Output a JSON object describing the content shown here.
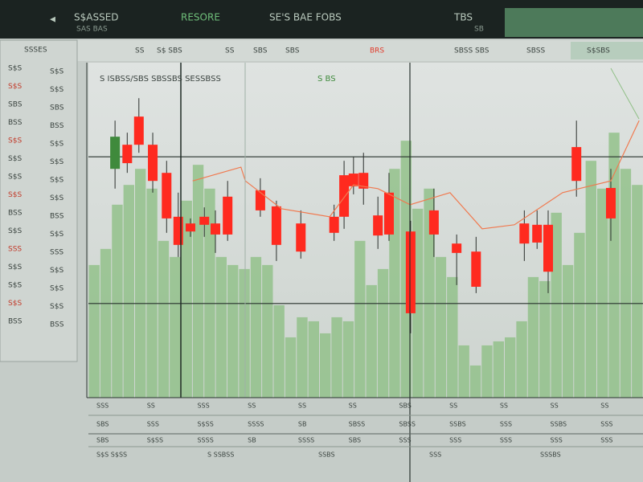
{
  "toolbar": {
    "tabs": [
      "S$ASSED",
      "RESORE",
      "SE'S BAE FOBS",
      "TBS"
    ],
    "subtabs": [
      "SAS BAS",
      "SB"
    ]
  },
  "secondbar": [
    "SS",
    "S$ SBS",
    "SS",
    "SBS",
    "SBS",
    "BRS",
    "SBSS SBS",
    "SBSS",
    "S$SBS"
  ],
  "watchlist": {
    "title": "SSSES",
    "rows": [
      "S$S",
      "S$S",
      "SBS",
      "BSS",
      "S$S",
      "S$S",
      "S$S",
      "S$S",
      "BSS",
      "S$S",
      "SSS",
      "S$S",
      "S$S",
      "S$S",
      "BSS"
    ]
  },
  "chart_data": {
    "type": "candlestick",
    "title": "S ISBSS/SBS SBSSBS SESSBSS",
    "subtitle": "S BS",
    "xlim": [
      0,
      100
    ],
    "ylim": [
      0,
      100
    ],
    "up_color": "#3f8a3c",
    "down_color": "#ff2a1f",
    "volume_color": "#8fbf86",
    "ma_color": "#f07a50",
    "levels": [
      71.9,
      28.1
    ],
    "candles": {
      "x": [
        4.8,
        7.0,
        9.1,
        11.6,
        14.1,
        16.2,
        18.4,
        20.9,
        22.9,
        25.1,
        31.0,
        33.9,
        38.3,
        44.3,
        46.1,
        47.8,
        49.6,
        52.2,
        54.2,
        58.1,
        62.3,
        66.4,
        69.9,
        78.6,
        80.9,
        82.9,
        88.0,
        94.2
      ],
      "open": [
        68.3,
        75.5,
        83.9,
        75.5,
        67.1,
        54.0,
        52.0,
        54.0,
        52.0,
        60.0,
        61.9,
        57.1,
        52.0,
        54.0,
        66.4,
        66.9,
        67.1,
        54.4,
        61.2,
        49.6,
        55.9,
        46.0,
        43.6,
        52.0,
        51.6,
        51.6,
        74.8,
        62.6
      ],
      "high": [
        82.7,
        79.1,
        89.4,
        79.1,
        70.7,
        61.2,
        53.5,
        56.8,
        55.9,
        64.7,
        65.5,
        58.8,
        55.9,
        57.6,
        70.7,
        71.9,
        73.1,
        60.0,
        67.1,
        52.8,
        62.4,
        48.7,
        48.0,
        55.9,
        55.9,
        55.9,
        82.7,
        68.3
      ],
      "low": [
        62.4,
        67.1,
        73.1,
        61.2,
        49.2,
        42.0,
        48.0,
        48.0,
        43.2,
        46.8,
        54.0,
        40.8,
        41.5,
        46.8,
        50.4,
        60.7,
        57.6,
        44.4,
        46.8,
        19.2,
        42.0,
        33.6,
        31.2,
        40.8,
        44.4,
        31.2,
        60.0,
        46.8
      ],
      "close": [
        77.9,
        70.0,
        75.5,
        64.7,
        53.5,
        45.6,
        49.6,
        51.6,
        48.7,
        48.7,
        55.9,
        45.6,
        43.6,
        49.2,
        54.0,
        63.1,
        62.4,
        48.4,
        48.7,
        25.2,
        48.7,
        43.2,
        33.1,
        46.0,
        46.3,
        37.6,
        64.7,
        53.5
      ]
    },
    "volume": [
      39.6,
      44.4,
      57.6,
      63.5,
      68.3,
      62.4,
      46.8,
      42.0,
      58.8,
      69.5,
      62.4,
      42.0,
      39.6,
      38.4,
      42.0,
      39.6,
      27.6,
      18.0,
      24.0,
      22.8,
      19.2,
      24.0,
      22.8,
      46.8,
      33.6,
      38.4,
      68.3,
      76.7,
      56.4,
      62.4,
      42.0,
      36.0,
      15.6,
      9.6,
      15.6,
      16.8,
      18.0,
      22.8,
      36.0,
      34.8,
      55.2,
      39.6,
      49.2,
      70.7,
      62.4,
      79.1,
      68.3,
      63.5
    ],
    "ma": {
      "x": [
        18.8,
        27.5,
        28.3,
        34.8,
        43.5,
        47.8,
        52.2,
        58.0,
        65.2,
        71.0,
        76.8,
        85.5,
        94.2,
        99.3
      ],
      "values": [
        64.7,
        68.8,
        64.7,
        56.4,
        54.0,
        63.5,
        62.4,
        57.6,
        61.2,
        50.4,
        51.6,
        61.2,
        64.7,
        82.7
      ]
    }
  },
  "footer": {
    "row1": [
      "SSS",
      "SS",
      "SSS",
      "SS",
      "SS",
      "SS",
      "SBS",
      "SS",
      "SS",
      "SS",
      "SS"
    ],
    "row2": [
      "SBS",
      "SSS",
      "S$SS",
      "SSSS",
      "SB",
      "SBSS",
      "SBSS",
      "SSBS",
      "SSS",
      "SSBS",
      "SSS"
    ],
    "row3": [
      "SBS",
      "S$SS",
      "SSSS",
      "SB",
      "SSSS",
      "SBS",
      "SSS",
      "SSS",
      "SSS",
      "SSS",
      "SSS"
    ],
    "row4": [
      "S$S S$SS",
      "S SSBSS",
      "SSBS",
      "SSS",
      "SSSBS"
    ]
  }
}
